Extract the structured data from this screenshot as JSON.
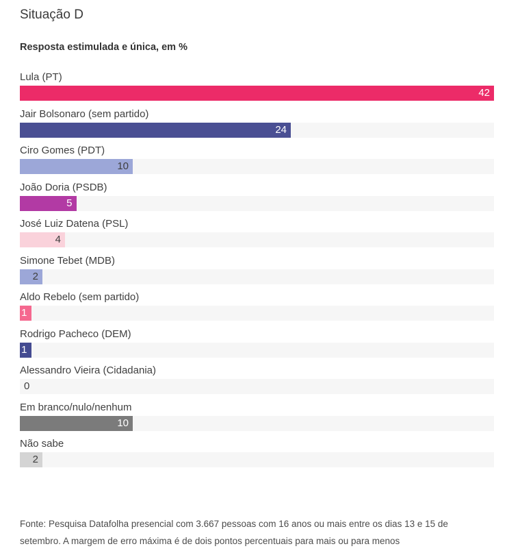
{
  "page": {
    "title": "Situação D"
  },
  "chart_data": {
    "type": "bar",
    "orientation": "horizontal",
    "title": "Situação D",
    "subtitle": "Resposta estimulada e única, em %",
    "unit": "%",
    "value_axis_max": 42,
    "grid": false,
    "legend": "none",
    "track_color": "#f6f6f6",
    "categories": [
      "Lula (PT)",
      "Jair Bolsonaro (sem partido)",
      "Ciro Gomes (PDT)",
      "João Doria (PSDB)",
      "José Luiz Datena (PSL)",
      "Simone Tebet (MDB)",
      "Aldo Rebelo (sem partido)",
      "Rodrigo Pacheco (DEM)",
      "Alessandro Vieira (Cidadania)",
      "Em branco/nulo/nenhum",
      "Não sabe"
    ],
    "values": [
      42,
      24,
      10,
      5,
      4,
      2,
      1,
      1,
      0,
      10,
      2
    ],
    "bar_colors": [
      "#ec2b68",
      "#4a4f93",
      "#9ca7d8",
      "#b23aa4",
      "#fad2db",
      "#9ca7d8",
      "#f5688f",
      "#444b91",
      "#f6f6f6",
      "#7b7b7b",
      "#d4d4d4"
    ],
    "value_label_colors": [
      "#ffffff",
      "#ffffff",
      "#3f3f3f",
      "#ffffff",
      "#3f3f3f",
      "#3f3f3f",
      "#ffffff",
      "#ffffff",
      "#3f3f3f",
      "#ffffff",
      "#3f3f3f"
    ]
  },
  "footer": {
    "lines": [
      "Fonte: Pesquisa Datafolha presencial com 3.667 pessoas com 16 anos ou mais entre os dias 13 e 15 de",
      "setembro. A margem de erro máxima é de dois pontos percentuais para mais ou para menos"
    ]
  }
}
